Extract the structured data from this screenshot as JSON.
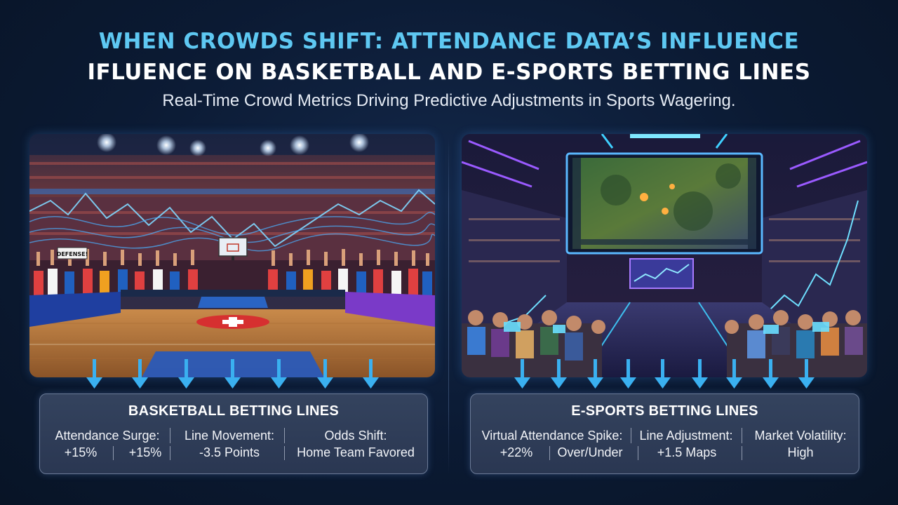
{
  "header": {
    "title_line1": "WHEN CROWDS SHIFT: ATTENDANCE DATA’S INFLUENCE",
    "title_line2": "IFLUENCE ON BASKETBALL AND E-SPORTS BETTING LINES",
    "subtitle": "Real-Time Crowd Metrics Driving Predictive Adjustments in Sports Wagering."
  },
  "basketball": {
    "sign_text": "DEFENSE!",
    "box_title": "BASKETBALL BETTING LINES",
    "metrics": [
      {
        "label": "Attendance Surge:",
        "values": [
          "+15%",
          "+15%"
        ]
      },
      {
        "label": "Line Movement:",
        "values": [
          "-3.5 Points"
        ]
      },
      {
        "label": "Odds Shift:",
        "values": [
          "Home Team Favored"
        ]
      }
    ]
  },
  "esports": {
    "box_title": "E-SPORTS BETTING LINES",
    "metrics": [
      {
        "label": "Virtual Attendance Spike:",
        "values": [
          "+22%",
          "Over/Under"
        ]
      },
      {
        "label": "Line Adjustment:",
        "values": [
          "+1.5 Maps"
        ]
      },
      {
        "label": "Market Volatility:",
        "values": [
          "High"
        ]
      }
    ]
  },
  "colors": {
    "title_accent": "#5ec8f2",
    "background": "#0b1a33",
    "arrow": "#3ab0f0",
    "neon_purple": "#8a4dff",
    "neon_cyan": "#3fd0ff"
  },
  "icons": {
    "flow_arrow": "down-arrow-icon"
  }
}
